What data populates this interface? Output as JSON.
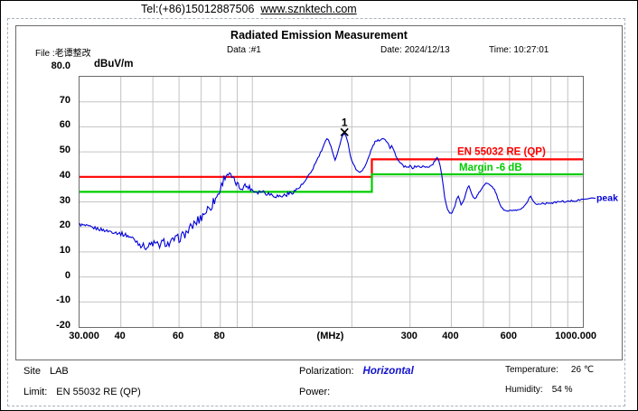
{
  "header": {
    "tel": "Tel:(+86)15012887506",
    "url": "www.sznktech.com"
  },
  "report": {
    "title": "Radiated Emission Measurement",
    "file_label": "File :",
    "file_value": "老谭整改",
    "data_label": "Data :",
    "data_value": "#1",
    "date_label": "Date:",
    "date_value": "2024/12/13",
    "time_label": "Time:",
    "time_value": "10:27:01"
  },
  "footer": {
    "site_label": "Site",
    "site_value": "LAB",
    "limit_label": "Limit:",
    "limit_value": "EN 55032 RE (QP)",
    "polarization_label": "Polarization:",
    "polarization_value": "Horizontal",
    "power_label": "Power:",
    "power_value": "",
    "temperature_label": "Temperature:",
    "temperature_value": "26 ℃",
    "humidity_label": "Humidity:",
    "humidity_value": "54 %"
  },
  "colors": {
    "trace": "#0000d8",
    "limit": "#ff0000",
    "margin": "#00cc00",
    "grid": "#c3c3c3",
    "frame": "#6b6b6b",
    "marker": "#000000"
  },
  "chart_data": {
    "type": "line",
    "title": "Radiated Emission Measurement",
    "x_axis": {
      "label": "(MHz)",
      "scale": "log",
      "min": 30,
      "max": 1000,
      "tick_labels": [
        "30.000",
        "40",
        "60",
        "80",
        "(MHz)",
        "300",
        "400",
        "600",
        "1000.000"
      ],
      "tick_values": [
        30,
        40,
        60,
        80,
        null,
        300,
        400,
        600,
        1000
      ],
      "grid_values": [
        40,
        50,
        60,
        70,
        80,
        90,
        100,
        200,
        300,
        400,
        500,
        600,
        700,
        800,
        900
      ]
    },
    "y_axis": {
      "label": "dBuV/m",
      "min": -20,
      "max": 80,
      "top_label": "80.0",
      "ticks": [
        70,
        60,
        50,
        40,
        30,
        20,
        10,
        0,
        -10,
        -20
      ],
      "grid_step": 10
    },
    "limit_line": {
      "name": "EN 55032 RE (QP)",
      "color": "#ff0000",
      "points": [
        [
          30,
          40
        ],
        [
          230,
          40
        ],
        [
          230,
          47
        ],
        [
          1000,
          47
        ]
      ]
    },
    "margin_line": {
      "name": "Margin -6 dB",
      "color": "#00cc00",
      "points": [
        [
          30,
          34
        ],
        [
          230,
          34
        ],
        [
          230,
          41
        ],
        [
          1000,
          41
        ]
      ]
    },
    "marker": {
      "id": "1",
      "freq_mhz": 190,
      "level_db": 57.5
    },
    "trace": {
      "name": "peak",
      "color": "#0000d8",
      "unit": "dBuV/m",
      "points": [
        [
          30,
          21,
          0.7
        ],
        [
          32,
          20,
          0.7
        ],
        [
          34,
          19.3,
          0.7
        ],
        [
          36,
          18.5,
          0.6
        ],
        [
          38,
          18,
          0.7
        ],
        [
          40,
          17.3,
          0.8
        ],
        [
          42,
          16.5,
          0.9
        ],
        [
          44,
          15,
          1.2
        ],
        [
          46,
          12.8,
          1.2
        ],
        [
          48,
          11.8,
          1.3
        ],
        [
          50,
          13.5,
          1.8
        ],
        [
          52,
          12.5,
          1.7
        ],
        [
          54,
          14,
          1.6
        ],
        [
          56,
          13,
          1.6
        ],
        [
          58,
          15,
          1.5
        ],
        [
          60,
          15.5,
          1.8
        ],
        [
          63,
          17.5,
          1.8
        ],
        [
          66,
          20.5,
          2.0
        ],
        [
          69,
          23,
          2.2
        ],
        [
          72,
          26,
          2.2
        ],
        [
          75,
          28.5,
          2.2
        ],
        [
          78,
          32,
          2.0
        ],
        [
          80,
          35,
          1.8
        ],
        [
          82,
          39.5,
          1.5
        ],
        [
          84,
          41.3,
          1.2
        ],
        [
          86,
          40.5,
          1.2
        ],
        [
          88,
          38.5,
          1.3
        ],
        [
          90,
          37,
          1.3
        ],
        [
          92,
          35.5,
          1.2
        ],
        [
          95,
          36.5,
          1.2
        ],
        [
          98,
          35.8,
          1.0
        ],
        [
          101,
          34.3,
          0.9
        ],
        [
          104,
          34,
          0.9
        ],
        [
          107,
          34.3,
          0.9
        ],
        [
          110,
          33.6,
          0.9
        ],
        [
          114,
          33,
          0.9
        ],
        [
          118,
          32.4,
          0.9
        ],
        [
          122,
          32.2,
          0.9
        ],
        [
          126,
          32.8,
          0.9
        ],
        [
          130,
          33.4,
          0.9
        ],
        [
          134,
          34.3,
          0.8
        ],
        [
          138,
          35.5,
          0.8
        ],
        [
          142,
          37,
          0.7
        ],
        [
          146,
          39,
          0.7
        ],
        [
          150,
          41.5,
          0.6
        ],
        [
          154,
          44.5,
          0.6
        ],
        [
          158,
          47.5,
          0.5
        ],
        [
          162,
          50.5,
          0.5
        ],
        [
          165,
          53,
          0.4
        ],
        [
          168,
          55,
          0.4
        ],
        [
          170,
          54.5,
          0.4
        ],
        [
          173,
          52.5,
          0.4
        ],
        [
          176,
          48.5,
          0.4
        ],
        [
          178,
          47,
          0.4
        ],
        [
          181,
          49.5,
          0.4
        ],
        [
          184,
          53,
          0.4
        ],
        [
          187,
          56,
          0.3
        ],
        [
          190,
          57.5,
          0.3
        ],
        [
          192,
          56.5,
          0.3
        ],
        [
          195,
          53,
          0.4
        ],
        [
          198,
          48.5,
          0.4
        ],
        [
          202,
          45,
          0.4
        ],
        [
          206,
          43,
          0.4
        ],
        [
          210,
          42,
          0.4
        ],
        [
          215,
          42.5,
          0.4
        ],
        [
          220,
          44.5,
          0.4
        ],
        [
          225,
          48,
          0.4
        ],
        [
          230,
          51.5,
          0.4
        ],
        [
          235,
          54,
          0.4
        ],
        [
          240,
          54.5,
          0.4
        ],
        [
          245,
          55,
          0.4
        ],
        [
          250,
          55.5,
          0.4
        ],
        [
          254,
          54.5,
          0.4
        ],
        [
          258,
          53.5,
          0.4
        ],
        [
          261,
          51.5,
          0.4
        ],
        [
          264,
          52.5,
          0.4
        ],
        [
          268,
          50.5,
          0.4
        ],
        [
          272,
          48.5,
          0.4
        ],
        [
          276,
          46.5,
          0.4
        ],
        [
          280,
          45.5,
          0.4
        ],
        [
          285,
          44.5,
          0.4
        ],
        [
          290,
          44,
          0.4
        ],
        [
          295,
          43.6,
          0.4
        ],
        [
          300,
          44.3,
          0.4
        ],
        [
          305,
          43.6,
          0.4
        ],
        [
          310,
          44,
          0.4
        ],
        [
          316,
          44.4,
          0.4
        ],
        [
          322,
          43.8,
          0.4
        ],
        [
          328,
          44.2,
          0.4
        ],
        [
          334,
          43.8,
          0.4
        ],
        [
          340,
          44,
          0.4
        ],
        [
          346,
          44.4,
          0.4
        ],
        [
          352,
          45.2,
          0.4
        ],
        [
          357,
          46.5,
          0.3
        ],
        [
          362,
          47.5,
          0.3
        ],
        [
          366,
          46.8,
          0.3
        ],
        [
          370,
          44.5,
          0.3
        ],
        [
          374,
          41,
          0.3
        ],
        [
          378,
          36.5,
          0.3
        ],
        [
          382,
          32,
          0.3
        ],
        [
          386,
          29,
          0.3
        ],
        [
          390,
          27,
          0.3
        ],
        [
          395,
          25.8,
          0.3
        ],
        [
          400,
          25.3,
          0.3
        ],
        [
          405,
          26.5,
          0.3
        ],
        [
          410,
          28.5,
          0.3
        ],
        [
          415,
          31,
          0.3
        ],
        [
          420,
          32,
          0.3
        ],
        [
          424,
          30.5,
          0.3
        ],
        [
          428,
          28.8,
          0.3
        ],
        [
          433,
          29.5,
          0.3
        ],
        [
          438,
          31.5,
          0.3
        ],
        [
          443,
          34,
          0.3
        ],
        [
          448,
          36,
          0.3
        ],
        [
          452,
          36.5,
          0.3
        ],
        [
          456,
          35,
          0.3
        ],
        [
          461,
          33,
          0.3
        ],
        [
          466,
          31.8,
          0.3
        ],
        [
          471,
          31.3,
          0.3
        ],
        [
          476,
          32,
          0.3
        ],
        [
          482,
          33,
          0.3
        ],
        [
          488,
          34.2,
          0.3
        ],
        [
          494,
          35.3,
          0.3
        ],
        [
          500,
          36.2,
          0.3
        ],
        [
          508,
          37.2,
          0.3
        ],
        [
          516,
          37.5,
          0.3
        ],
        [
          524,
          37,
          0.3
        ],
        [
          532,
          36.2,
          0.3
        ],
        [
          540,
          34.8,
          0.3
        ],
        [
          548,
          32.8,
          0.3
        ],
        [
          556,
          30.5,
          0.3
        ],
        [
          564,
          28.5,
          0.3
        ],
        [
          572,
          27.2,
          0.3
        ],
        [
          580,
          26.6,
          0.3
        ],
        [
          590,
          26.3,
          0.3
        ],
        [
          600,
          26.4,
          0.3
        ],
        [
          610,
          26.6,
          0.3
        ],
        [
          620,
          26.6,
          0.3
        ],
        [
          630,
          26.4,
          0.3
        ],
        [
          640,
          26.7,
          0.3
        ],
        [
          650,
          27.1,
          0.3
        ],
        [
          660,
          27.6,
          0.3
        ],
        [
          670,
          28.6,
          0.4
        ],
        [
          680,
          30.2,
          0.4
        ],
        [
          688,
          31.8,
          0.3
        ],
        [
          695,
          32.2,
          0.3
        ],
        [
          702,
          31.2,
          0.3
        ],
        [
          710,
          30,
          0.3
        ],
        [
          718,
          29.2,
          0.3
        ],
        [
          728,
          29,
          0.3
        ],
        [
          740,
          29.3,
          0.3
        ],
        [
          755,
          29.5,
          0.3
        ],
        [
          770,
          29.3,
          0.3
        ],
        [
          790,
          29.7,
          0.3
        ],
        [
          810,
          29.5,
          0.3
        ],
        [
          830,
          29.9,
          0.3
        ],
        [
          850,
          30.1,
          0.3
        ],
        [
          870,
          30.2,
          0.3
        ],
        [
          890,
          30,
          0.3
        ],
        [
          910,
          30.3,
          0.3
        ],
        [
          930,
          30.5,
          0.3
        ],
        [
          950,
          30.4,
          0.3
        ],
        [
          970,
          30.7,
          0.3
        ],
        [
          1000,
          31,
          0.3
        ]
      ]
    },
    "annotations": [
      {
        "text": "EN 55032 RE (QP)",
        "color": "#ff0000"
      },
      {
        "text": "Margin -6 dB",
        "color": "#00cc00"
      },
      {
        "text": "peak",
        "color": "#0000d8"
      }
    ],
    "legend_position": "right-inline",
    "grid": true
  }
}
